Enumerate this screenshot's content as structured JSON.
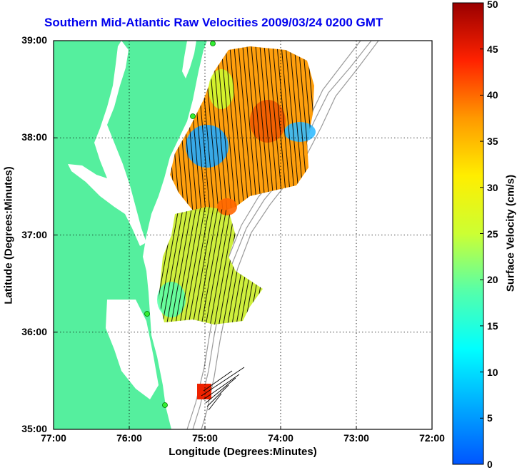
{
  "title": "Southern Mid-Atlantic Raw Velocities 2009/03/24 0200 GMT",
  "x_axis_label": "Longitude (Degrees:Minutes)",
  "y_axis_label": "Latitude (Degrees:Minutes)",
  "colorbar_label": "Surface Velocity (cm/s)",
  "x_ticks": [
    "77:00",
    "76:00",
    "75:00",
    "74:00",
    "73:00",
    "72:00"
  ],
  "y_ticks": [
    "39:00",
    "38:00",
    "37:00",
    "36:00",
    "35:00"
  ],
  "colorbar_ticks": [
    "50",
    "45",
    "40",
    "35",
    "30",
    "25",
    "20",
    "15",
    "10",
    "5",
    "0"
  ],
  "colors": {
    "land": "#55ef9e",
    "title": "#0000ee",
    "contour": "#9a9a9a",
    "arrows": "#000000"
  },
  "map_data": {
    "type": "current-velocity-map",
    "lon_range": [
      -77,
      -72
    ],
    "lat_range": [
      35,
      39
    ],
    "colorbar_range": [
      0,
      50
    ],
    "grid": true,
    "velocity_fields": [
      {
        "region": "northern-field",
        "typical_speed_cm_s": 35,
        "max_speed_cm_s": 45
      },
      {
        "region": "southern-field",
        "typical_speed_cm_s": 22
      },
      {
        "region": "cape-hatteras-patch",
        "typical_speed_cm_s": 45
      }
    ]
  }
}
